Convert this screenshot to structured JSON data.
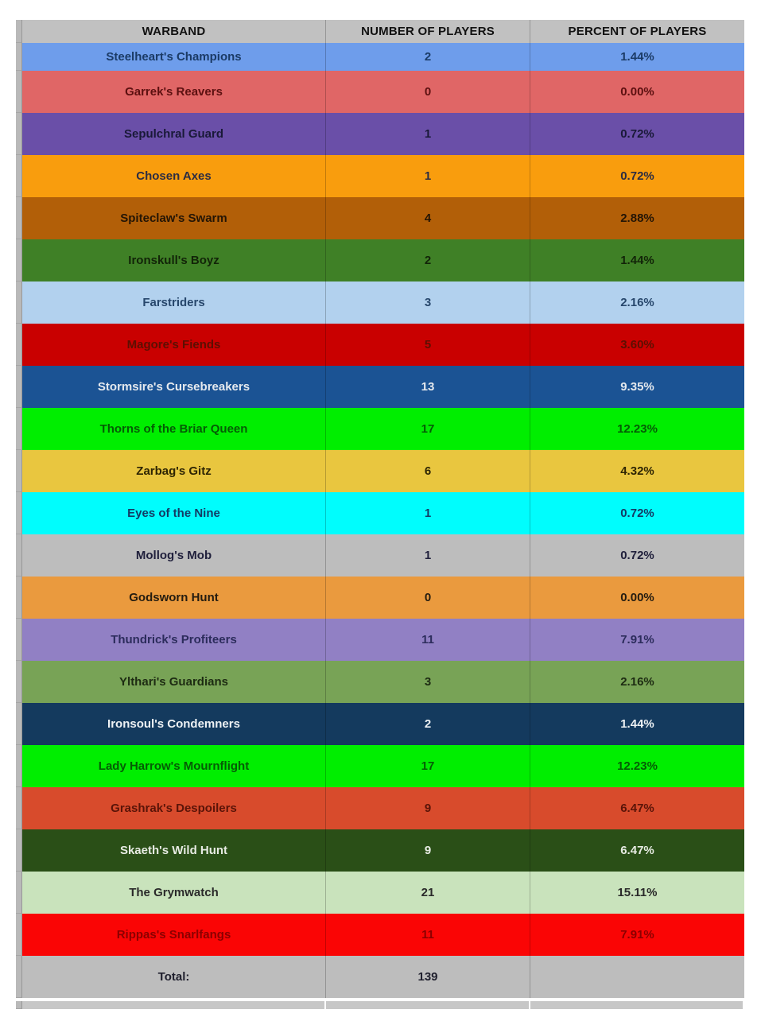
{
  "header": {
    "columns": [
      "WARBAND",
      "NUMBER OF PLAYERS",
      "PERCENT OF PLAYERS"
    ],
    "bg": "#c1c1c1",
    "fg": "#111111"
  },
  "rows": [
    {
      "name": "Steelheart's Champions",
      "players": "2",
      "percent": "1.44%",
      "bg": "#6e9deb",
      "fg": "#1b3b66"
    },
    {
      "name": "Garrek's Reavers",
      "players": "0",
      "percent": "0.00%",
      "bg": "#e06666",
      "fg": "#5c1010"
    },
    {
      "name": "Sepulchral Guard",
      "players": "1",
      "percent": "0.72%",
      "bg": "#6a4fa8",
      "fg": "#191938"
    },
    {
      "name": "Chosen Axes",
      "players": "1",
      "percent": "0.72%",
      "bg": "#f99d0d",
      "fg": "#2d2d42"
    },
    {
      "name": "Spiteclaw's Swarm",
      "players": "4",
      "percent": "2.88%",
      "bg": "#b25f08",
      "fg": "#241505"
    },
    {
      "name": "Ironskull's Boyz",
      "players": "2",
      "percent": "1.44%",
      "bg": "#3f8026",
      "fg": "#122408"
    },
    {
      "name": "Farstriders",
      "players": "3",
      "percent": "2.16%",
      "bg": "#b2d1ee",
      "fg": "#27476c"
    },
    {
      "name": "Magore's Fiends",
      "players": "5",
      "percent": "3.60%",
      "bg": "#c90000",
      "fg": "#5c0f02"
    },
    {
      "name": "Stormsire's Cursebreakers",
      "players": "13",
      "percent": "9.35%",
      "bg": "#1b5394",
      "fg": "#e5e9ee"
    },
    {
      "name": "Thorns of the Briar Queen",
      "players": "17",
      "percent": "12.23%",
      "bg": "#00ee00",
      "fg": "#055c05"
    },
    {
      "name": "Zarbag's Gitz",
      "players": "6",
      "percent": "4.32%",
      "bg": "#e9c63f",
      "fg": "#2e2503"
    },
    {
      "name": "Eyes of the Nine",
      "players": "1",
      "percent": "0.72%",
      "bg": "#00fdfd",
      "fg": "#133a64"
    },
    {
      "name": "Mollog's Mob",
      "players": "1",
      "percent": "0.72%",
      "bg": "#bdbdbd",
      "fg": "#20203c"
    },
    {
      "name": "Godsworn Hunt",
      "players": "0",
      "percent": "0.00%",
      "bg": "#ea9a3e",
      "fg": "#241c10"
    },
    {
      "name": "Thundrick's Profiteers",
      "players": "11",
      "percent": "7.91%",
      "bg": "#9180c4",
      "fg": "#2c2c5c"
    },
    {
      "name": "Ylthari's Guardians",
      "players": "3",
      "percent": "2.16%",
      "bg": "#78a356",
      "fg": "#1d2b12"
    },
    {
      "name": "Ironsoul's Condemners",
      "players": "2",
      "percent": "1.44%",
      "bg": "#143a5e",
      "fg": "#edf1f4"
    },
    {
      "name": "Lady Harrow's Mournflight",
      "players": "17",
      "percent": "12.23%",
      "bg": "#00ee00",
      "fg": "#055c05"
    },
    {
      "name": "Grashrak's Despoilers",
      "players": "9",
      "percent": "6.47%",
      "bg": "#d84b2c",
      "fg": "#5a1408"
    },
    {
      "name": "Skaeth's Wild Hunt",
      "players": "9",
      "percent": "6.47%",
      "bg": "#2a4f17",
      "fg": "#e7ebe3"
    },
    {
      "name": "The Grymwatch",
      "players": "21",
      "percent": "15.11%",
      "bg": "#c9e3bc",
      "fg": "#2a2a2a"
    },
    {
      "name": "Rippas's Snarlfangs",
      "players": "11",
      "percent": "7.91%",
      "bg": "#fa0505",
      "fg": "#8b0000"
    }
  ],
  "total_row": {
    "label": "Total:",
    "players": "139",
    "percent": "",
    "bg": "#bdbdbd",
    "fg": "#20202e"
  },
  "colors": {
    "page_bg": "#ffffff",
    "sliver_bg": "#b9b9b9",
    "partial_row_bg": "#c7c7c7",
    "gridline": "rgba(0,0,0,0.22)"
  },
  "chart_data": {
    "type": "table",
    "columns": [
      "WARBAND",
      "NUMBER OF PLAYERS",
      "PERCENT OF PLAYERS"
    ],
    "rows": [
      [
        "Steelheart's Champions",
        2,
        "1.44%"
      ],
      [
        "Garrek's Reavers",
        0,
        "0.00%"
      ],
      [
        "Sepulchral Guard",
        1,
        "0.72%"
      ],
      [
        "Chosen Axes",
        1,
        "0.72%"
      ],
      [
        "Spiteclaw's Swarm",
        4,
        "2.88%"
      ],
      [
        "Ironskull's Boyz",
        2,
        "1.44%"
      ],
      [
        "Farstriders",
        3,
        "2.16%"
      ],
      [
        "Magore's Fiends",
        5,
        "3.60%"
      ],
      [
        "Stormsire's Cursebreakers",
        13,
        "9.35%"
      ],
      [
        "Thorns of the Briar Queen",
        17,
        "12.23%"
      ],
      [
        "Zarbag's Gitz",
        6,
        "4.32%"
      ],
      [
        "Eyes of the Nine",
        1,
        "0.72%"
      ],
      [
        "Mollog's Mob",
        1,
        "0.72%"
      ],
      [
        "Godsworn Hunt",
        0,
        "0.00%"
      ],
      [
        "Thundrick's Profiteers",
        11,
        "7.91%"
      ],
      [
        "Ylthari's Guardians",
        3,
        "2.16%"
      ],
      [
        "Ironsoul's Condemners",
        2,
        "1.44%"
      ],
      [
        "Lady Harrow's Mournflight",
        17,
        "12.23%"
      ],
      [
        "Grashrak's Despoilers",
        9,
        "6.47%"
      ],
      [
        "Skaeth's Wild Hunt",
        9,
        "6.47%"
      ],
      [
        "The Grymwatch",
        21,
        "15.11%"
      ],
      [
        "Rippas's Snarlfangs",
        11,
        "7.91%"
      ]
    ],
    "total_players": 139
  }
}
